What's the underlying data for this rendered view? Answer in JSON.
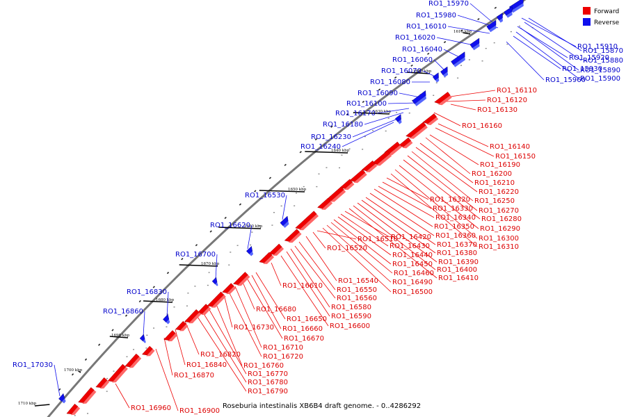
{
  "caption": "Roseburia intestinalis XB6B4 draft genome. - 0..4286292",
  "legend": [
    {
      "label": "Forward",
      "color": "#ee0000"
    },
    {
      "label": "Reverse",
      "color": "#1010ee"
    }
  ],
  "ticks": [
    "1610 kbp",
    "1620 kbp",
    "1630 kbp",
    "1640 kbp",
    "1650 kbp",
    "1660 kbp",
    "1670 kbp",
    "1680 kbp",
    "1690 kbp",
    "1700 kbp",
    "1710 kbp"
  ],
  "reverse_genes": [
    "RO1_15970",
    "RO1_15980",
    "RO1_16010",
    "RO1_16020",
    "RO1_16040",
    "RO1_16060",
    "RO1_16070",
    "RO1_16080",
    "RO1_16090",
    "RO1_16100",
    "RO1_16170",
    "RO1_16180",
    "RO1_16230",
    "RO1_16240",
    "RO1_16530",
    "RO1_16620",
    "RO1_16700",
    "RO1_16830",
    "RO1_16860",
    "RO1_17030"
  ],
  "reverse_right_genes": [
    "RO1_15870",
    "RO1_15880",
    "RO1_15890",
    "RO1_15900",
    "RO1_15910",
    "RO1_15920",
    "RO1_15930",
    "RO1_15960"
  ],
  "forward_genes": [
    "RO1_16110",
    "RO1_16120",
    "RO1_16130",
    "RO1_16160",
    "RO1_16140",
    "RO1_16150",
    "RO1_16190",
    "RO1_16200",
    "RO1_16210",
    "RO1_16220",
    "RO1_16250",
    "RO1_16270",
    "RO1_16280",
    "RO1_16290",
    "RO1_16300",
    "RO1_16310",
    "RO1_16320",
    "RO1_16330",
    "RO1_16340",
    "RO1_16350",
    "RO1_16360",
    "RO1_16370",
    "RO1_16380",
    "RO1_16390",
    "RO1_16400",
    "RO1_16410",
    "RO1_16420",
    "RO1_16430",
    "RO1_16440",
    "RO1_16450",
    "RO1_16460",
    "RO1_16490",
    "RO1_16500",
    "RO1_16510",
    "RO1_16520",
    "RO1_16540",
    "RO1_16550",
    "RO1_16560",
    "RO1_16580",
    "RO1_16590",
    "RO1_16600",
    "RO1_16610",
    "RO1_16650",
    "RO1_16660",
    "RO1_16670",
    "RO1_16680",
    "RO1_16710",
    "RO1_16720",
    "RO1_16730",
    "RO1_16760",
    "RO1_16770",
    "RO1_16780",
    "RO1_16790",
    "RO1_16820",
    "RO1_16840",
    "RO1_16870",
    "RO1_16900",
    "RO1_16960"
  ]
}
